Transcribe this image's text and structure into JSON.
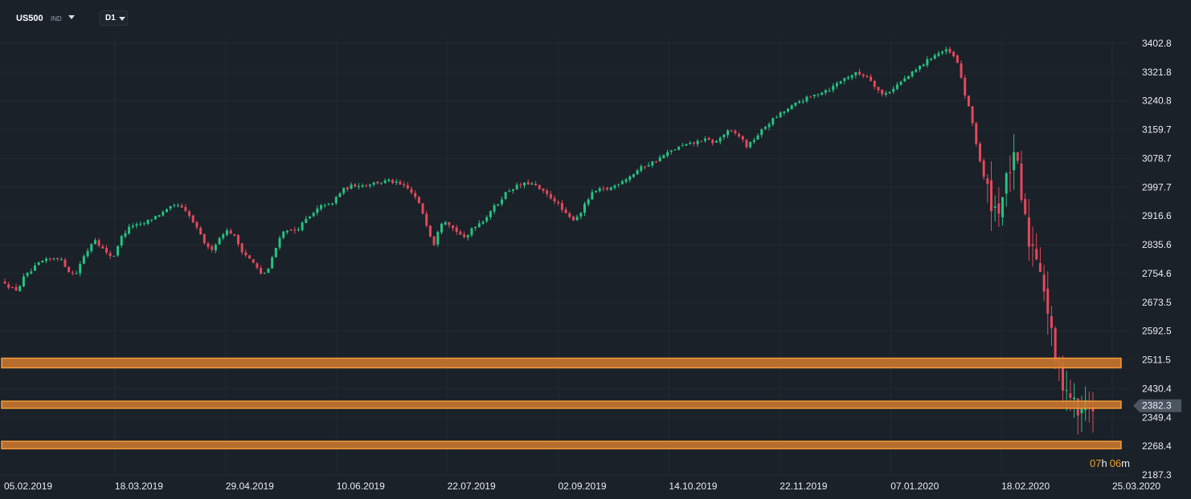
{
  "toolbar": {
    "symbol": "US500",
    "symbol_type": "IND",
    "symbol_dropdown_icon": "chevron-down-icon",
    "timeframe": "D1",
    "timeframe_dropdown_icon": "chevron-down-icon"
  },
  "colors": {
    "background": "#1a2128",
    "grid": "#222b33",
    "bull": "#26c281",
    "bear": "#e5485d",
    "zone_fill": "#c8752f",
    "zone_border": "#f39a3b",
    "price_tag": "#4b5661",
    "countdown": "#f39c2b"
  },
  "chart_data": {
    "type": "candlestick",
    "instrument": "US500",
    "timeframe": "D1",
    "x_tick_labels": [
      "05.02.2019",
      "18.03.2019",
      "29.04.2019",
      "10.06.2019",
      "22.07.2019",
      "02.09.2019",
      "14.10.2019",
      "22.11.2019",
      "07.01.2020",
      "18.02.2020",
      "25.03.2020"
    ],
    "y_tick_labels": [
      "3402.8",
      "3321.8",
      "3240.8",
      "3159.7",
      "3078.7",
      "2997.7",
      "2916.6",
      "2835.6",
      "2754.6",
      "2673.5",
      "2592.5",
      "2511.5",
      "2430.4",
      "2349.4",
      "2268.4",
      "2187.3"
    ],
    "ylim": [
      2187.3,
      3402.8
    ],
    "grid": true,
    "current_price": "2382.3",
    "countdown": {
      "hours": "07",
      "h_unit": "h",
      "minutes": "06",
      "m_unit": "m"
    },
    "zones": [
      {
        "name": "resistance-zone",
        "low": 2489,
        "high": 2516
      },
      {
        "name": "current-zone",
        "low": 2375,
        "high": 2395
      },
      {
        "name": "support-zone",
        "low": 2261,
        "high": 2282
      }
    ],
    "path_closes": [
      2730,
      2712,
      2708,
      2745,
      2758,
      2778,
      2790,
      2793,
      2803,
      2788,
      2762,
      2748,
      2793,
      2822,
      2855,
      2830,
      2808,
      2803,
      2852,
      2876,
      2891,
      2889,
      2898,
      2910,
      2920,
      2928,
      2941,
      2947,
      2932,
      2912,
      2880,
      2848,
      2818,
      2840,
      2868,
      2876,
      2855,
      2820,
      2800,
      2780,
      2752,
      2760,
      2808,
      2862,
      2880,
      2872,
      2885,
      2905,
      2918,
      2938,
      2950,
      2945,
      2976,
      2992,
      3000,
      3005,
      3003,
      3008,
      3010,
      3013,
      3015,
      3010,
      3002,
      2992,
      2972,
      2940,
      2888,
      2835,
      2898,
      2905,
      2882,
      2868,
      2848,
      2885,
      2895,
      2908,
      2935,
      2950,
      2978,
      2992,
      3000,
      3005,
      3010,
      2999,
      2985,
      2972,
      2960,
      2935,
      2912,
      2908,
      2928,
      2960,
      2985,
      2990,
      2992,
      2998,
      3012,
      3022,
      3032,
      3048,
      3058,
      3066,
      3075,
      3088,
      3098,
      3108,
      3114,
      3118,
      3124,
      3132,
      3128,
      3122,
      3142,
      3154,
      3150,
      3138,
      3110,
      3132,
      3152,
      3172,
      3188,
      3202,
      3214,
      3225,
      3238,
      3246,
      3252,
      3262,
      3270,
      3275,
      3290,
      3302,
      3312,
      3318,
      3314,
      3308,
      3282,
      3258,
      3265,
      3280,
      3294,
      3308,
      3322,
      3338,
      3352,
      3368,
      3376,
      3382,
      3372,
      3340,
      3258,
      3195,
      3100,
      3020,
      2960,
      2930,
      2980,
      3050,
      3080,
      2940,
      2845,
      2820,
      2760,
      2640,
      2520,
      2460,
      2430,
      2390,
      2350,
      2400,
      2380
    ]
  }
}
